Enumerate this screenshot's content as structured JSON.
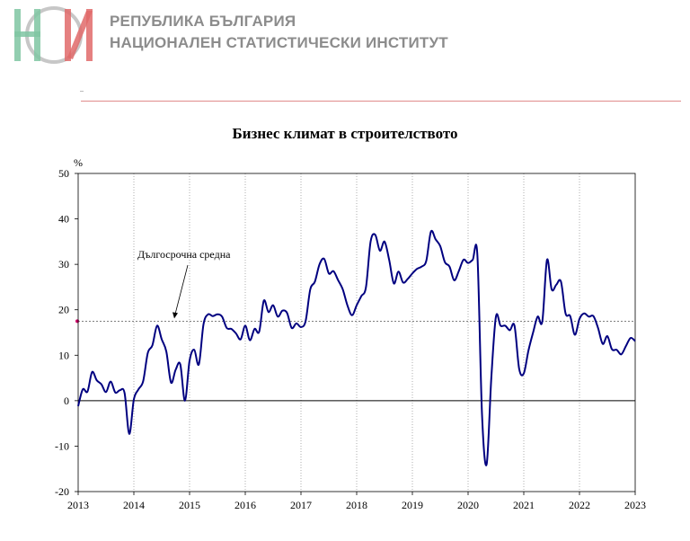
{
  "header": {
    "org_line_1": "РЕПУБЛИКА БЪЛГАРИЯ",
    "org_line_2": "НАЦИОНАЛЕН СТАТИСТИЧЕСКИ ИНСТИТУТ"
  },
  "colors": {
    "line": "#000080",
    "logo_green": "#7fc6a2",
    "logo_red": "#e06a6a",
    "logo_gray": "#a9a9a9",
    "header_rule": "#e08c8c",
    "average_marker": "#cc0066"
  },
  "chart_data": {
    "type": "line",
    "title": "Бизнес климат в строителството",
    "ylabel": "%",
    "xlabel": "",
    "ylim": [
      -20,
      50
    ],
    "yticks": [
      -20,
      -10,
      0,
      10,
      20,
      30,
      40,
      50
    ],
    "xlim": [
      2013,
      2023
    ],
    "xticks": [
      "2013",
      "2014",
      "2015",
      "2016",
      "2017",
      "2018",
      "2019",
      "2020",
      "2021",
      "2022",
      "2023"
    ],
    "grid": "vertical dotted at years",
    "long_term_average": {
      "label": "Дългосрочна средна",
      "value": 17.5
    },
    "series": [
      {
        "color": "#000080",
        "x": [
          2013.0,
          2013.083,
          2013.167,
          2013.25,
          2013.333,
          2013.417,
          2013.5,
          2013.583,
          2013.667,
          2013.75,
          2013.833,
          2013.917,
          2014.0,
          2014.083,
          2014.167,
          2014.25,
          2014.333,
          2014.417,
          2014.5,
          2014.583,
          2014.667,
          2014.75,
          2014.833,
          2014.917,
          2015.0,
          2015.083,
          2015.167,
          2015.25,
          2015.333,
          2015.417,
          2015.5,
          2015.583,
          2015.667,
          2015.75,
          2015.833,
          2015.917,
          2016.0,
          2016.083,
          2016.167,
          2016.25,
          2016.333,
          2016.417,
          2016.5,
          2016.583,
          2016.667,
          2016.75,
          2016.833,
          2016.917,
          2017.0,
          2017.083,
          2017.167,
          2017.25,
          2017.333,
          2017.417,
          2017.5,
          2017.583,
          2017.667,
          2017.75,
          2017.833,
          2017.917,
          2018.0,
          2018.083,
          2018.167,
          2018.25,
          2018.333,
          2018.417,
          2018.5,
          2018.583,
          2018.667,
          2018.75,
          2018.833,
          2018.917,
          2019.0,
          2019.083,
          2019.167,
          2019.25,
          2019.333,
          2019.417,
          2019.5,
          2019.583,
          2019.667,
          2019.75,
          2019.833,
          2019.917,
          2020.0,
          2020.083,
          2020.167,
          2020.25,
          2020.333,
          2020.417,
          2020.5,
          2020.583,
          2020.667,
          2020.75,
          2020.833,
          2020.917,
          2021.0,
          2021.083,
          2021.167,
          2021.25,
          2021.333,
          2021.417,
          2021.5,
          2021.583,
          2021.667,
          2021.75,
          2021.833,
          2021.917,
          2022.0,
          2022.083,
          2022.167,
          2022.25,
          2022.333,
          2022.417,
          2022.5,
          2022.583,
          2022.667,
          2022.75,
          2022.833,
          2022.917,
          2023.0
        ],
        "values": [
          -1.2,
          2.5,
          2.0,
          6.3,
          4.5,
          3.6,
          1.9,
          4.2,
          1.8,
          2.3,
          1.7,
          -7.3,
          0.3,
          2.5,
          4.3,
          10.5,
          12.2,
          16.5,
          13.5,
          10.8,
          4.0,
          6.8,
          8.0,
          0.0,
          8.8,
          11.2,
          8.0,
          16.8,
          19.0,
          18.6,
          19.0,
          18.5,
          16.0,
          15.8,
          14.8,
          13.5,
          16.5,
          13.3,
          15.8,
          15.2,
          22.0,
          19.5,
          21.0,
          18.5,
          19.8,
          19.3,
          16.0,
          17.0,
          16.2,
          17.5,
          24.5,
          26.2,
          30.0,
          31.2,
          28.0,
          28.5,
          26.5,
          24.5,
          21.0,
          18.8,
          21.0,
          23.0,
          25.0,
          35.0,
          36.5,
          33.0,
          35.0,
          31.0,
          25.8,
          28.4,
          26.0,
          26.8,
          28.0,
          29.0,
          29.5,
          30.8,
          37.2,
          35.5,
          34.0,
          30.5,
          29.5,
          26.5,
          28.5,
          31.0,
          30.3,
          31.0,
          32.0,
          -3.0,
          -14.0,
          5.0,
          18.5,
          16.5,
          16.5,
          15.5,
          16.5,
          7.0,
          6.0,
          11.0,
          15.0,
          18.5,
          17.5,
          31.0,
          24.5,
          25.5,
          26.2,
          19.2,
          18.6,
          14.5,
          18.0,
          19.2,
          18.5,
          18.6,
          16.0,
          12.5,
          14.2,
          11.3,
          11.2,
          10.2,
          12.0,
          13.8,
          13.1
        ]
      }
    ]
  }
}
